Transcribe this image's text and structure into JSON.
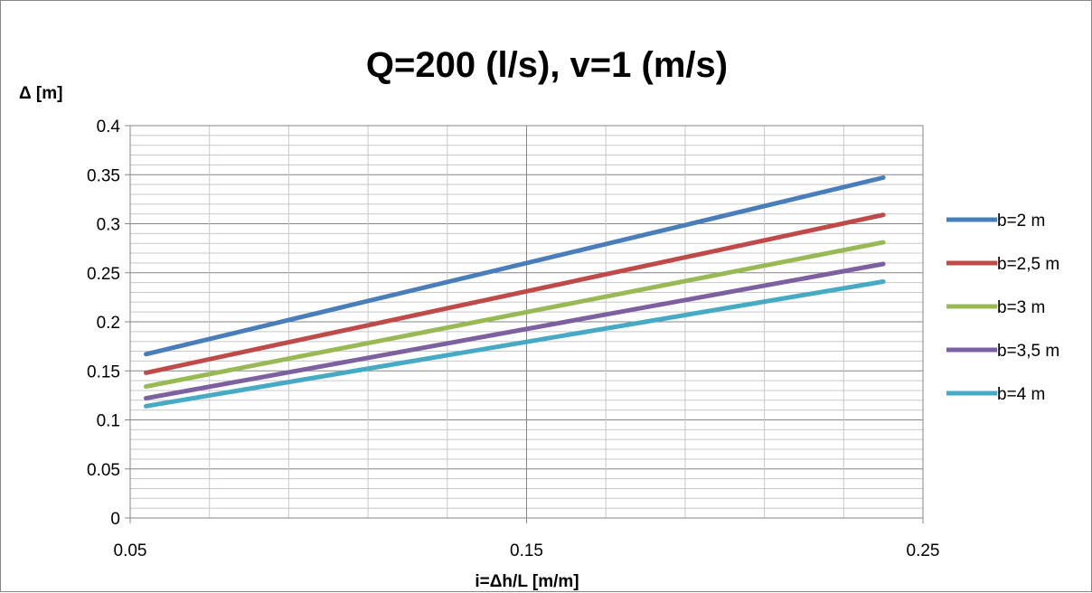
{
  "chart_data": {
    "type": "line",
    "title": "Q=200 (l/s), v=1 (m/s)",
    "xlabel": "i=Δh/L [m/m]",
    "ylabel": "Δ [m]",
    "xlim": [
      0.05,
      0.25
    ],
    "ylim": [
      0,
      0.4
    ],
    "xticks": [
      "0.05",
      "0.15",
      "0.25"
    ],
    "yticks": [
      "0",
      "0.05",
      "0.1",
      "0.15",
      "0.2",
      "0.25",
      "0.3",
      "0.35",
      "0.4"
    ],
    "grid": true,
    "legend_position": "right",
    "series": [
      {
        "name": "b=2 m",
        "color": "#4a7ebb",
        "x": [
          0.054,
          0.24
        ],
        "y": [
          0.167,
          0.347
        ]
      },
      {
        "name": "b=2,5 m",
        "color": "#be4b48",
        "x": [
          0.054,
          0.24
        ],
        "y": [
          0.148,
          0.309
        ]
      },
      {
        "name": "b=3 m",
        "color": "#98b954",
        "x": [
          0.054,
          0.24
        ],
        "y": [
          0.134,
          0.281
        ]
      },
      {
        "name": "b=3,5 m",
        "color": "#7d60a0",
        "x": [
          0.054,
          0.24
        ],
        "y": [
          0.122,
          0.259
        ]
      },
      {
        "name": "b=4 m",
        "color": "#46aac5",
        "x": [
          0.054,
          0.24
        ],
        "y": [
          0.114,
          0.241
        ]
      }
    ]
  }
}
